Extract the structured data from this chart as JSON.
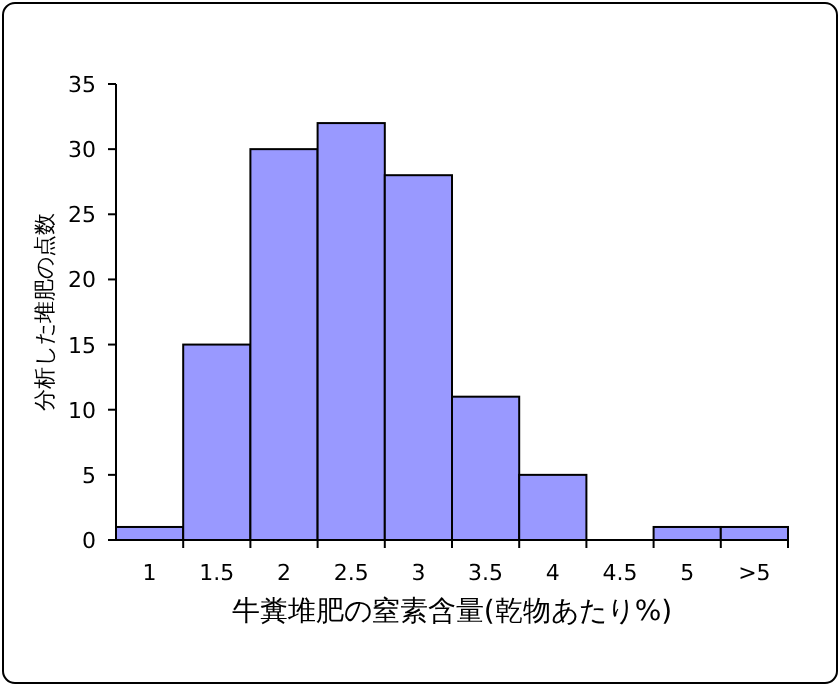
{
  "chart_data": {
    "type": "bar",
    "xlabel": "牛糞堆肥の窒素含量(乾物あたり%)",
    "ylabel": "分析した堆肥の点数",
    "categories": [
      "1",
      "1.5",
      "2",
      "2.5",
      "3",
      "3.5",
      "4",
      "4.5",
      "5",
      ">5"
    ],
    "values": [
      1,
      15,
      30,
      32,
      28,
      11,
      5,
      0,
      1,
      1
    ],
    "color": "#9999ff",
    "ylim": [
      0,
      35
    ],
    "yticks": [
      0,
      5,
      10,
      15,
      20,
      25,
      30,
      35
    ],
    "grid": false
  }
}
